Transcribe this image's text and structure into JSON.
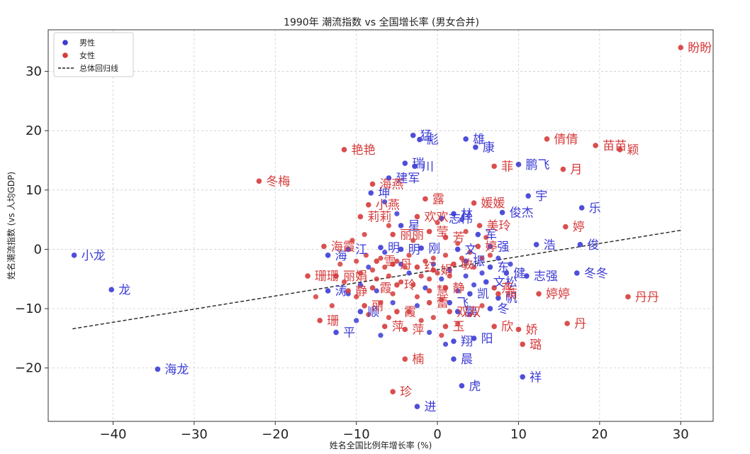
{
  "chart_data": {
    "type": "scatter",
    "title": "1990年 潮流指数 vs 全国增长率 (男女合并)",
    "xlabel": "姓名全国比例年增长率 (%)",
    "ylabel": "姓名潮流指数 (vs 人均GDP)",
    "xlim": [
      -48,
      34
    ],
    "ylim": [
      -29,
      37
    ],
    "xticks": [
      -40,
      -30,
      -20,
      -10,
      0,
      10,
      20,
      30
    ],
    "yticks": [
      -20,
      -10,
      0,
      10,
      20,
      30
    ],
    "grid": true,
    "legend_position": "top-left",
    "legend": [
      {
        "label": "男性",
        "kind": "marker",
        "color": "#3b3bd6"
      },
      {
        "label": "女性",
        "kind": "marker",
        "color": "#d63b3b"
      },
      {
        "label": "总体回归线",
        "kind": "dashed-line",
        "color": "#222222"
      }
    ],
    "regression": {
      "x": [
        -45,
        30
      ],
      "y": [
        -13.4,
        3.2
      ]
    },
    "series": [
      {
        "name": "男性",
        "color": "#3b3bd6",
        "points": [
          {
            "x": -44.8,
            "y": -1.0,
            "label": "小龙"
          },
          {
            "x": -40.2,
            "y": -6.8,
            "label": "龙"
          },
          {
            "x": -34.5,
            "y": -20.2,
            "label": "海龙"
          },
          {
            "x": -3.0,
            "y": 19.2,
            "label": "猛"
          },
          {
            "x": -2.2,
            "y": 18.5,
            "label": "彪"
          },
          {
            "x": 3.5,
            "y": 18.6,
            "label": "雄"
          },
          {
            "x": 4.7,
            "y": 17.2,
            "label": "康"
          },
          {
            "x": -4.0,
            "y": 14.5,
            "label": "瑞"
          },
          {
            "x": -2.8,
            "y": 14.0,
            "label": "川"
          },
          {
            "x": 10.0,
            "y": 14.3,
            "label": "鹏飞"
          },
          {
            "x": -6.0,
            "y": 12.0,
            "label": "建军"
          },
          {
            "x": 11.2,
            "y": 9.0,
            "label": "宇"
          },
          {
            "x": -8.2,
            "y": 9.5,
            "label": "坤"
          },
          {
            "x": 17.8,
            "y": 7.0,
            "label": "乐"
          },
          {
            "x": 8.0,
            "y": 6.2,
            "label": "俊杰"
          },
          {
            "x": 2.0,
            "y": 6.0,
            "label": "林"
          },
          {
            "x": 0.5,
            "y": 5.2,
            "label": "志伟"
          },
          {
            "x": -4.5,
            "y": 4.0,
            "label": "星"
          },
          {
            "x": 17.6,
            "y": 0.8,
            "label": "俊"
          },
          {
            "x": 12.2,
            "y": 0.8,
            "label": "浩"
          },
          {
            "x": 6.5,
            "y": 0.5,
            "label": "强"
          },
          {
            "x": 5.0,
            "y": 2.5,
            "label": "军"
          },
          {
            "x": 2.5,
            "y": 0.0,
            "label": "文"
          },
          {
            "x": -2.0,
            "y": 0.2,
            "label": "刚"
          },
          {
            "x": -4.5,
            "y": 0.0,
            "label": "明"
          },
          {
            "x": -7.0,
            "y": 0.3,
            "label": "明"
          },
          {
            "x": -11.0,
            "y": 0.0,
            "label": "江"
          },
          {
            "x": -13.5,
            "y": -1.0,
            "label": "海"
          },
          {
            "x": 3.5,
            "y": -2.0,
            "label": "振"
          },
          {
            "x": 6.5,
            "y": -3.0,
            "label": "东"
          },
          {
            "x": 8.5,
            "y": -4.0,
            "label": "健"
          },
          {
            "x": 11.0,
            "y": -4.5,
            "label": "志强"
          },
          {
            "x": 17.2,
            "y": -4.0,
            "label": "冬冬"
          },
          {
            "x": 6.0,
            "y": -5.5,
            "label": "文松"
          },
          {
            "x": 4.0,
            "y": -7.5,
            "label": "凯"
          },
          {
            "x": 7.5,
            "y": -8.2,
            "label": "帆"
          },
          {
            "x": 1.5,
            "y": -9.0,
            "label": "飞"
          },
          {
            "x": 6.5,
            "y": -10.0,
            "label": "冬"
          },
          {
            "x": 2.5,
            "y": -10.5,
            "label": "鹏"
          },
          {
            "x": -13.5,
            "y": -7.0,
            "label": "涛"
          },
          {
            "x": -9.5,
            "y": -10.5,
            "label": "顺"
          },
          {
            "x": -12.5,
            "y": -14.0,
            "label": "平"
          },
          {
            "x": 2.0,
            "y": -15.5,
            "label": "翔"
          },
          {
            "x": 4.5,
            "y": -15.0,
            "label": "阳"
          },
          {
            "x": 2.0,
            "y": -18.5,
            "label": "晨"
          },
          {
            "x": 10.5,
            "y": -21.5,
            "label": "祥"
          },
          {
            "x": 3.0,
            "y": -23.0,
            "label": "虎"
          },
          {
            "x": -2.5,
            "y": -26.5,
            "label": "进"
          }
        ]
      },
      {
        "name": "女性",
        "color": "#d63b3b",
        "points": [
          {
            "x": 30.0,
            "y": 34.0,
            "label": "盼盼"
          },
          {
            "x": 13.5,
            "y": 18.6,
            "label": "倩倩"
          },
          {
            "x": 19.5,
            "y": 17.5,
            "label": "苗苗"
          },
          {
            "x": 22.5,
            "y": 16.8,
            "label": "颖"
          },
          {
            "x": -11.5,
            "y": 16.8,
            "label": "艳艳"
          },
          {
            "x": 7.0,
            "y": 14.0,
            "label": "菲"
          },
          {
            "x": 15.5,
            "y": 13.5,
            "label": "月"
          },
          {
            "x": -22.0,
            "y": 11.5,
            "label": "冬梅"
          },
          {
            "x": -8.0,
            "y": 11.0,
            "label": "海燕"
          },
          {
            "x": -8.5,
            "y": 7.5,
            "label": "小燕"
          },
          {
            "x": 4.5,
            "y": 7.8,
            "label": "媛媛"
          },
          {
            "x": -1.5,
            "y": 8.5,
            "label": "露"
          },
          {
            "x": -2.5,
            "y": 5.5,
            "label": "欢欢"
          },
          {
            "x": -9.5,
            "y": 5.5,
            "label": "莉莉"
          },
          {
            "x": 5.2,
            "y": 4.0,
            "label": "美玲"
          },
          {
            "x": 15.8,
            "y": 3.8,
            "label": "婷"
          },
          {
            "x": -5.5,
            "y": 2.5,
            "label": "丽丽"
          },
          {
            "x": -1.0,
            "y": 3.0,
            "label": "莹"
          },
          {
            "x": 1.0,
            "y": 2.0,
            "label": "芳"
          },
          {
            "x": 5.0,
            "y": 0.5,
            "label": "婷"
          },
          {
            "x": -14.0,
            "y": 0.5,
            "label": "海霞"
          },
          {
            "x": -7.5,
            "y": -2.0,
            "label": "雪"
          },
          {
            "x": -5.5,
            "y": -2.5,
            "label": "丹"
          },
          {
            "x": -2.5,
            "y": -3.0,
            "label": "红"
          },
          {
            "x": -0.5,
            "y": -3.5,
            "label": "娟"
          },
          {
            "x": 2.0,
            "y": -2.5,
            "label": "敏"
          },
          {
            "x": -16.0,
            "y": -4.5,
            "label": "珊珊"
          },
          {
            "x": -12.5,
            "y": -4.5,
            "label": "丽娟"
          },
          {
            "x": -11.0,
            "y": -7.0,
            "label": "静"
          },
          {
            "x": -8.0,
            "y": -6.5,
            "label": "霞"
          },
          {
            "x": -5.0,
            "y": -6.0,
            "label": "玲"
          },
          {
            "x": -1.0,
            "y": -7.0,
            "label": "慧"
          },
          {
            "x": 1.0,
            "y": -6.5,
            "label": "静"
          },
          {
            "x": 7.0,
            "y": -6.5,
            "label": "燕"
          },
          {
            "x": 7.5,
            "y": -7.5,
            "label": "萌"
          },
          {
            "x": 12.5,
            "y": -7.5,
            "label": "婷婷"
          },
          {
            "x": 23.5,
            "y": -8.0,
            "label": "丹丹"
          },
          {
            "x": -9.0,
            "y": -9.5,
            "label": "丽"
          },
          {
            "x": -5.0,
            "y": -10.5,
            "label": "霞"
          },
          {
            "x": -1.0,
            "y": -9.0,
            "label": "蕾"
          },
          {
            "x": 1.5,
            "y": -10.5,
            "label": "双双"
          },
          {
            "x": -14.5,
            "y": -12.0,
            "label": "珊"
          },
          {
            "x": -6.5,
            "y": -13.0,
            "label": "萍"
          },
          {
            "x": -4.0,
            "y": -13.5,
            "label": "萍"
          },
          {
            "x": 1.0,
            "y": -13.0,
            "label": "玉"
          },
          {
            "x": 7.0,
            "y": -13.0,
            "label": "欣"
          },
          {
            "x": 10.0,
            "y": -13.5,
            "label": "娇"
          },
          {
            "x": 16.0,
            "y": -12.5,
            "label": "丹"
          },
          {
            "x": 10.5,
            "y": -16.0,
            "label": "璐"
          },
          {
            "x": -4.0,
            "y": -18.5,
            "label": "楠"
          },
          {
            "x": -5.5,
            "y": -24.0,
            "label": "珍"
          }
        ]
      }
    ],
    "unlabeled_points": [
      {
        "x": -10.0,
        "y": -2.0,
        "c": "f"
      },
      {
        "x": -9.5,
        "y": -4.0,
        "c": "f"
      },
      {
        "x": -8.8,
        "y": -1.0,
        "c": "f"
      },
      {
        "x": -8.0,
        "y": -3.5,
        "c": "f"
      },
      {
        "x": -7.5,
        "y": -5.0,
        "c": "f"
      },
      {
        "x": -7.0,
        "y": -1.5,
        "c": "f"
      },
      {
        "x": -6.5,
        "y": -3.0,
        "c": "f"
      },
      {
        "x": -6.0,
        "y": -4.5,
        "c": "f"
      },
      {
        "x": -5.5,
        "y": -7.5,
        "c": "f"
      },
      {
        "x": -5.0,
        "y": -2.0,
        "c": "f"
      },
      {
        "x": -4.5,
        "y": -5.5,
        "c": "f"
      },
      {
        "x": -4.0,
        "y": -3.0,
        "c": "f"
      },
      {
        "x": -3.5,
        "y": -1.0,
        "c": "f"
      },
      {
        "x": -3.0,
        "y": -6.0,
        "c": "f"
      },
      {
        "x": -2.5,
        "y": -8.0,
        "c": "f"
      },
      {
        "x": -2.0,
        "y": -4.5,
        "c": "f"
      },
      {
        "x": -1.5,
        "y": -2.0,
        "c": "f"
      },
      {
        "x": -1.0,
        "y": -5.0,
        "c": "f"
      },
      {
        "x": -0.5,
        "y": -1.5,
        "c": "f"
      },
      {
        "x": 0.0,
        "y": -4.0,
        "c": "f"
      },
      {
        "x": 0.5,
        "y": -8.5,
        "c": "f"
      },
      {
        "x": 1.0,
        "y": -1.0,
        "c": "f"
      },
      {
        "x": 1.5,
        "y": -4.5,
        "c": "f"
      },
      {
        "x": 2.5,
        "y": 1.0,
        "c": "f"
      },
      {
        "x": 3.0,
        "y": -1.5,
        "c": "f"
      },
      {
        "x": 3.5,
        "y": 3.0,
        "c": "f"
      },
      {
        "x": 4.0,
        "y": -0.5,
        "c": "f"
      },
      {
        "x": 4.5,
        "y": -3.0,
        "c": "f"
      },
      {
        "x": 5.5,
        "y": -1.5,
        "c": "f"
      },
      {
        "x": 6.0,
        "y": 2.0,
        "c": "f"
      },
      {
        "x": 6.5,
        "y": -1.0,
        "c": "f"
      },
      {
        "x": -12.0,
        "y": -2.5,
        "c": "f"
      },
      {
        "x": -11.5,
        "y": -5.5,
        "c": "f"
      },
      {
        "x": -10.5,
        "y": 1.5,
        "c": "f"
      },
      {
        "x": -10.0,
        "y": -8.0,
        "c": "f"
      },
      {
        "x": -9.0,
        "y": 2.5,
        "c": "f"
      },
      {
        "x": -8.5,
        "y": -11.0,
        "c": "f"
      },
      {
        "x": -7.0,
        "y": -9.0,
        "c": "f"
      },
      {
        "x": -6.0,
        "y": -11.5,
        "c": "f"
      },
      {
        "x": -3.5,
        "y": -10.5,
        "c": "f"
      },
      {
        "x": -2.0,
        "y": -12.0,
        "c": "f"
      },
      {
        "x": -0.5,
        "y": -11.5,
        "c": "f"
      },
      {
        "x": 0.5,
        "y": -14.5,
        "c": "f"
      },
      {
        "x": 2.5,
        "y": -12.5,
        "c": "f"
      },
      {
        "x": 4.0,
        "y": -11.0,
        "c": "f"
      },
      {
        "x": 5.5,
        "y": -9.5,
        "c": "f"
      },
      {
        "x": -13.0,
        "y": -9.5,
        "c": "f"
      },
      {
        "x": -15.0,
        "y": -8.0,
        "c": "f"
      },
      {
        "x": -6.0,
        "y": 4.0,
        "c": "f"
      },
      {
        "x": -3.0,
        "y": 1.5,
        "c": "f"
      },
      {
        "x": 0.0,
        "y": 4.5,
        "c": "f"
      },
      {
        "x": -9.5,
        "y": -6.0,
        "c": "m"
      },
      {
        "x": -8.5,
        "y": -3.0,
        "c": "m"
      },
      {
        "x": -7.5,
        "y": -7.0,
        "c": "m"
      },
      {
        "x": -6.5,
        "y": -0.5,
        "c": "m"
      },
      {
        "x": -5.5,
        "y": -9.0,
        "c": "m"
      },
      {
        "x": -4.5,
        "y": -2.5,
        "c": "m"
      },
      {
        "x": -3.5,
        "y": -4.0,
        "c": "m"
      },
      {
        "x": -2.5,
        "y": -9.5,
        "c": "m"
      },
      {
        "x": -1.5,
        "y": -6.5,
        "c": "m"
      },
      {
        "x": -0.5,
        "y": -2.5,
        "c": "m"
      },
      {
        "x": 0.5,
        "y": -5.0,
        "c": "m"
      },
      {
        "x": 1.5,
        "y": -3.5,
        "c": "m"
      },
      {
        "x": 2.5,
        "y": -7.0,
        "c": "m"
      },
      {
        "x": 3.5,
        "y": -4.5,
        "c": "m"
      },
      {
        "x": 4.5,
        "y": -6.0,
        "c": "m"
      },
      {
        "x": 5.5,
        "y": -4.0,
        "c": "m"
      },
      {
        "x": -11.0,
        "y": -7.5,
        "c": "m"
      },
      {
        "x": -10.0,
        "y": -12.0,
        "c": "m"
      },
      {
        "x": -7.0,
        "y": -14.5,
        "c": "m"
      },
      {
        "x": -1.0,
        "y": -14.0,
        "c": "m"
      },
      {
        "x": 1.0,
        "y": -16.0,
        "c": "m"
      },
      {
        "x": -6.5,
        "y": 8.0,
        "c": "m"
      },
      {
        "x": -5.0,
        "y": 6.0,
        "c": "m"
      },
      {
        "x": 3.0,
        "y": 5.0,
        "c": "m"
      },
      {
        "x": 7.5,
        "y": -1.5,
        "c": "m"
      },
      {
        "x": 9.0,
        "y": -2.5,
        "c": "m"
      }
    ]
  }
}
